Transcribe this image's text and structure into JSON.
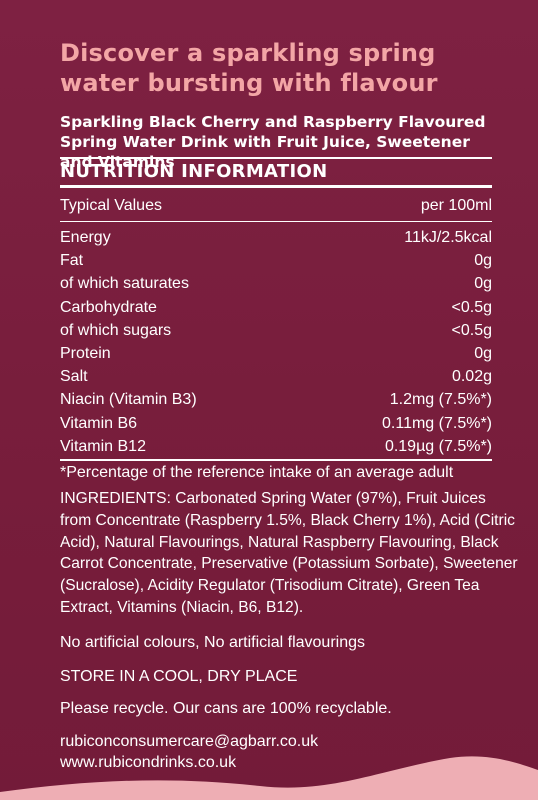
{
  "headline": "Discover a sparkling spring water bursting with flavour",
  "product_name": "Sparkling Black Cherry and Raspberry Flavoured Spring Water Drink with Fruit Juice, Sweetener and Vitamins",
  "nutrition": {
    "title": "NUTRITION INFORMATION",
    "header_left": "Typical Values",
    "header_right": "per 100ml",
    "rows": [
      {
        "label": "Energy",
        "value": "11kJ/2.5kcal"
      },
      {
        "label": "Fat",
        "value": "0g"
      },
      {
        "label": "of which saturates",
        "value": "0g"
      },
      {
        "label": "Carbohydrate",
        "value": "<0.5g"
      },
      {
        "label": "of which sugars",
        "value": "<0.5g"
      },
      {
        "label": "Protein",
        "value": "0g"
      },
      {
        "label": "Salt",
        "value": "0.02g"
      },
      {
        "label": "Niacin (Vitamin B3)",
        "value": "1.2mg (7.5%*)"
      },
      {
        "label": "Vitamin B6",
        "value": "0.11mg (7.5%*)"
      },
      {
        "label": "Vitamin B12",
        "value": "0.19µg (7.5%*)"
      }
    ],
    "footnote": "*Percentage of the reference intake of an average adult"
  },
  "ingredients": "INGREDIENTS: Carbonated Spring Water (97%), Fruit Juices from Concentrate (Raspberry 1.5%, Black Cherry 1%), Acid (Citric Acid), Natural Flavourings, Natural Raspberry Flavouring, Black Carrot Concentrate, Preservative (Potassium Sorbate), Sweetener (Sucralose), Acidity Regulator (Trisodium Citrate), Green Tea Extract, Vitamins (Niacin, B6, B12).",
  "claims": "No artificial colours, No artificial flavourings",
  "storage": "STORE IN A COOL, DRY PLACE",
  "recycle": "Please recycle. Our cans are 100% recyclable.",
  "contact_email": "rubiconconsumercare@agbarr.co.uk",
  "website": "www.rubicondrinks.co.uk",
  "colors": {
    "background": "#7a1f3d",
    "headline": "#f3a6a6",
    "wave": "#f4b6bb"
  }
}
